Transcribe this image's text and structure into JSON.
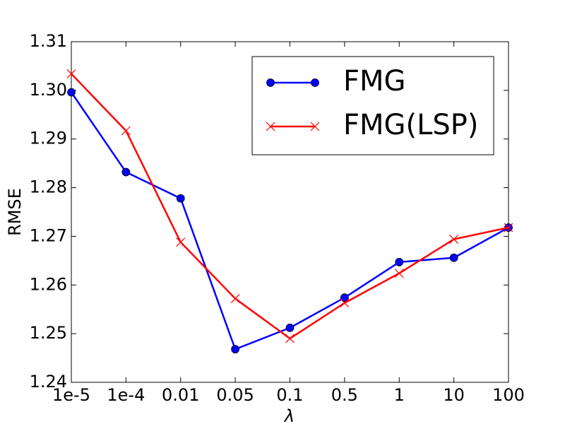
{
  "chart_data": {
    "type": "line",
    "categories": [
      "1e-5",
      "1e-4",
      "0.01",
      "0.05",
      "0.1",
      "0.5",
      "1",
      "10",
      "100"
    ],
    "series": [
      {
        "name": "FMG",
        "marker": "circle",
        "color": "#0000ff",
        "values": [
          1.2996,
          1.2832,
          1.2778,
          1.2468,
          1.2512,
          1.2574,
          1.2647,
          1.2656,
          1.2718
        ]
      },
      {
        "name": "FMG(LSP)",
        "marker": "x",
        "color": "#ff0000",
        "values": [
          1.3034,
          1.2917,
          1.2688,
          1.2572,
          1.249,
          1.2563,
          1.2624,
          1.2694,
          1.2718
        ]
      }
    ],
    "xlabel": "λ",
    "ylabel": "RMSE",
    "ylim": [
      1.24,
      1.31
    ],
    "yticks": [
      "1.24",
      "1.25",
      "1.26",
      "1.27",
      "1.28",
      "1.29",
      "1.30",
      "1.31"
    ],
    "legend_position": "top-right",
    "grid": false
  }
}
